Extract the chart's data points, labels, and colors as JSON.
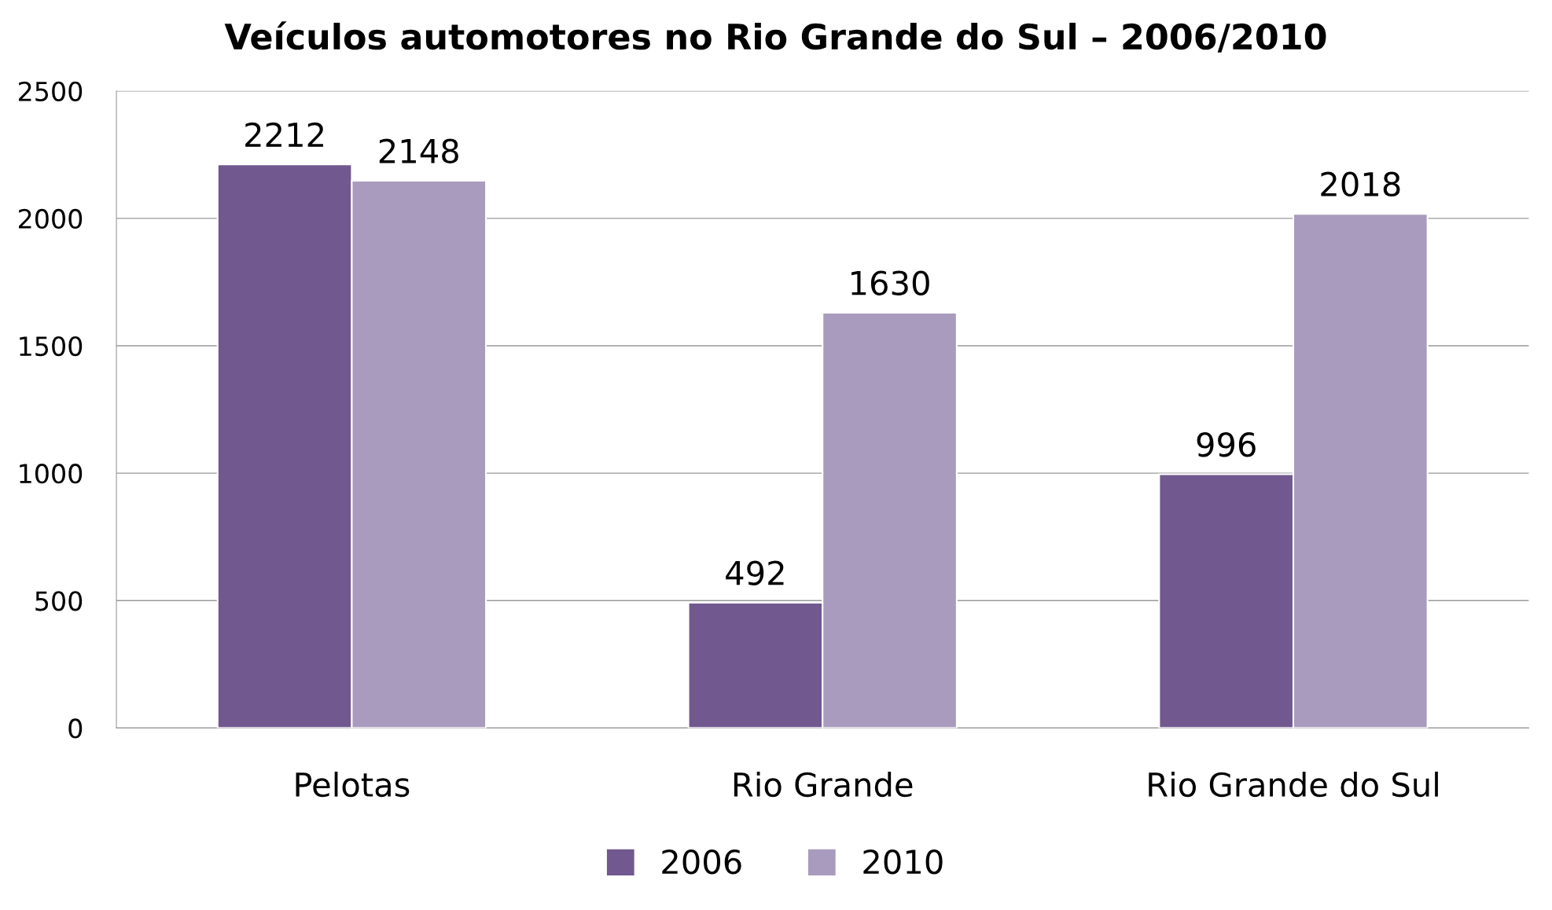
{
  "chart_data": {
    "type": "bar",
    "title": "Veículos automotores no Rio Grande do Sul – 2006/2010",
    "categories": [
      "Pelotas",
      "Rio Grande",
      "Rio Grande do Sul"
    ],
    "series": [
      {
        "name": "2006",
        "color": "#71588f",
        "values": [
          2212,
          492,
          996
        ]
      },
      {
        "name": "2010",
        "color": "#a99bbd",
        "values": [
          2148,
          1630,
          2018
        ]
      }
    ],
    "ylim": [
      0,
      2500
    ],
    "yticks": [
      0,
      500,
      1000,
      1500,
      2000,
      2500
    ],
    "grid": "y",
    "legend": "bottom",
    "data_labels": true
  }
}
